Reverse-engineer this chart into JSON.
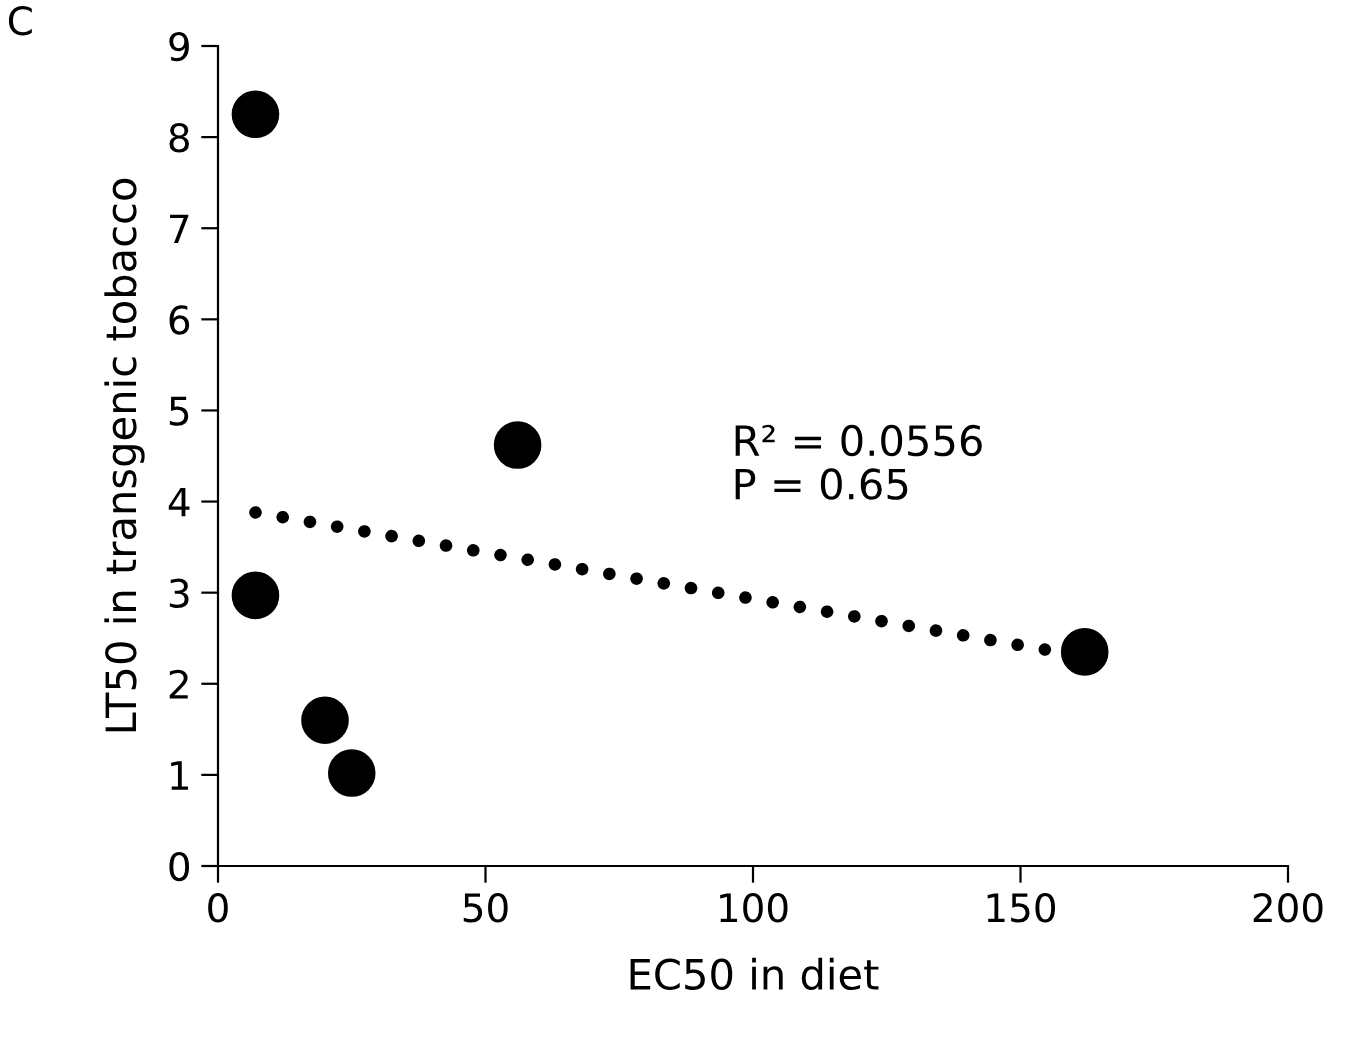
{
  "chart_data": {
    "type": "scatter",
    "xlabel": "EC50 in diet",
    "ylabel": "LT50 in transgenic tobacco",
    "annotations": [
      "C",
      "R² = 0.0556\nP = 0.65"
    ],
    "series": [
      {
        "color": "#000000",
        "marker": "circle",
        "x": [
          7,
          7,
          20,
          25,
          56,
          162
        ],
        "values": [
          8.25,
          2.97,
          1.6,
          1.02,
          4.62,
          2.35
        ]
      },
      {
        "type": "line",
        "color": "#000000",
        "line_style": "dotted",
        "x": [
          7,
          162
        ],
        "values": [
          3.88,
          2.3
        ]
      }
    ],
    "xlim": [
      0,
      200
    ],
    "xticks": [
      0,
      50,
      100,
      150,
      200
    ],
    "ylim": [
      0,
      9
    ],
    "yticks": [
      0,
      1,
      2,
      3,
      4,
      5,
      6,
      7,
      8,
      9
    ],
    "grid": false,
    "legend": false
  }
}
